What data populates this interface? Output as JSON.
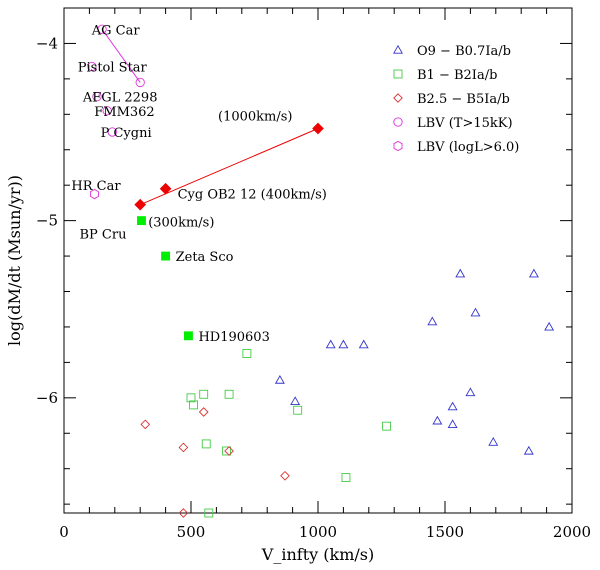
{
  "chart_data": {
    "type": "scatter",
    "xlabel": "V_infty (km/s)",
    "ylabel": "log(dM/dt (Msun/yr))",
    "xlim": [
      0,
      2000
    ],
    "ylim": [
      -6.65,
      -3.8
    ],
    "x_ticks": [
      {
        "value": 0,
        "label": "0"
      },
      {
        "value": 500,
        "label": "500"
      },
      {
        "value": 1000,
        "label": "1000"
      },
      {
        "value": 1500,
        "label": "1500"
      },
      {
        "value": 2000,
        "label": "2000"
      }
    ],
    "y_ticks": [
      {
        "value": -4,
        "label": "−4"
      },
      {
        "value": -5,
        "label": "−5"
      },
      {
        "value": -6,
        "label": "−6"
      }
    ],
    "colors": {
      "o_stars": "#3333cc",
      "b1_stars": "#44cc44",
      "b25_stars": "#dd3333",
      "lbv": "#dd33dd",
      "highlight_green": "#00ee00",
      "highlight_red": "#ee0000"
    },
    "series": [
      {
        "name": "O9 − B0.7Ia/b",
        "marker": "triangle",
        "points": [
          [
            1050,
            -5.7
          ],
          [
            1100,
            -5.7
          ],
          [
            1180,
            -5.7
          ],
          [
            850,
            -5.9
          ],
          [
            910,
            -6.02
          ],
          [
            1450,
            -5.57
          ],
          [
            1470,
            -6.13
          ],
          [
            1530,
            -6.05
          ],
          [
            1530,
            -6.15
          ],
          [
            1560,
            -5.3
          ],
          [
            1600,
            -5.97
          ],
          [
            1620,
            -5.52
          ],
          [
            1690,
            -6.25
          ],
          [
            1830,
            -6.3
          ],
          [
            1850,
            -5.3
          ],
          [
            1910,
            -5.6
          ]
        ]
      },
      {
        "name": "B1 − B2Ia/b",
        "marker": "square",
        "points": [
          [
            500,
            -6.0
          ],
          [
            510,
            -6.04
          ],
          [
            550,
            -5.98
          ],
          [
            560,
            -6.26
          ],
          [
            570,
            -6.65
          ],
          [
            640,
            -6.3
          ],
          [
            650,
            -5.98
          ],
          [
            720,
            -5.75
          ],
          [
            920,
            -6.07
          ],
          [
            1110,
            -6.45
          ],
          [
            1270,
            -6.16
          ]
        ]
      },
      {
        "name": "B2.5 − B5Ia/b",
        "marker": "diamond",
        "points": [
          [
            320,
            -6.15
          ],
          [
            470,
            -6.28
          ],
          [
            470,
            -6.65
          ],
          [
            550,
            -6.08
          ],
          [
            650,
            -6.3
          ],
          [
            870,
            -6.44
          ]
        ]
      },
      {
        "name": "LBV (T>15kK)",
        "marker": "circle",
        "points": [
          [
            150,
            -3.92
          ],
          [
            300,
            -4.22
          ],
          [
            110,
            -4.13
          ],
          [
            130,
            -4.3
          ],
          [
            170,
            -4.38
          ],
          [
            190,
            -4.5
          ]
        ]
      },
      {
        "name": "LBV (logL>6.0)",
        "marker": "hexagon",
        "points": [
          [
            120,
            -4.85
          ]
        ]
      }
    ],
    "highlight_points": [
      {
        "label": "BP Cru",
        "x": 305,
        "y": -5.0,
        "marker": "filled-square",
        "color": "#00ee00"
      },
      {
        "label": "Zeta Sco",
        "x": 400,
        "y": -5.2,
        "marker": "filled-square",
        "color": "#00ee00"
      },
      {
        "label": "HD190603",
        "x": 490,
        "y": -5.65,
        "marker": "filled-square",
        "color": "#00ee00"
      },
      {
        "label": "(300km/s)",
        "x": 300,
        "y": -4.91,
        "marker": "filled-diamond",
        "color": "#ee0000"
      },
      {
        "label": "Cyg OB2 12 (400km/s)",
        "x": 400,
        "y": -4.82,
        "marker": "filled-diamond",
        "color": "#ee0000"
      },
      {
        "label": "(1000km/s)",
        "x": 1000,
        "y": -4.48,
        "marker": "filled-diamond",
        "color": "#ee0000"
      }
    ],
    "lines": [
      {
        "name": "AG Car track",
        "color": "#dd33dd",
        "points": [
          [
            150,
            -3.92
          ],
          [
            300,
            -4.22
          ]
        ]
      },
      {
        "name": "Cyg OB2 12 track",
        "color": "#ee0000",
        "points": [
          [
            300,
            -4.91
          ],
          [
            1000,
            -4.48
          ]
        ]
      }
    ],
    "annotations": [
      {
        "text": "AG Car",
        "x": 180,
        "y": -3.92
      },
      {
        "text": "Pistol Star",
        "x": 125,
        "y": -4.13
      },
      {
        "text": "AFGL 2298",
        "x": 145,
        "y": -4.3
      },
      {
        "text": "FMM362",
        "x": 190,
        "y": -4.38
      },
      {
        "text": "P Cygni",
        "x": 215,
        "y": -4.5
      },
      {
        "text": "HR Car",
        "x": 100,
        "y": -4.8
      }
    ],
    "legend_position": "top-right"
  }
}
